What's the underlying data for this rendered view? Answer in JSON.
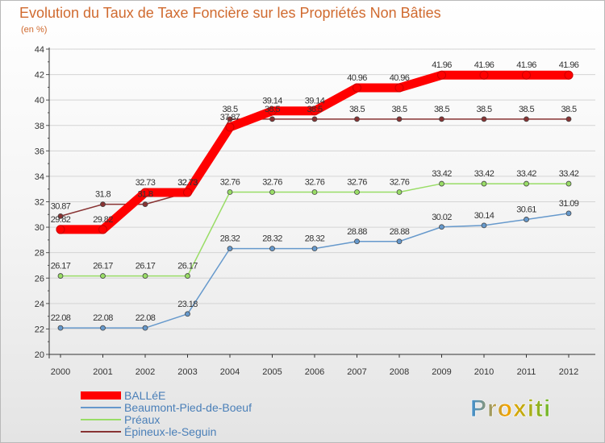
{
  "chart_data": {
    "type": "line",
    "title": "Evolution du Taux de Taxe Foncière sur les Propriétés Non Bâties",
    "subtitle": "(en %)",
    "categories": [
      "2000",
      "2001",
      "2002",
      "2003",
      "2004",
      "2005",
      "2006",
      "2007",
      "2008",
      "2009",
      "2010",
      "2011",
      "2012"
    ],
    "ylim": [
      20,
      44
    ],
    "yticks": [
      20,
      22,
      24,
      26,
      28,
      30,
      32,
      34,
      36,
      38,
      40,
      42,
      44
    ],
    "series": [
      {
        "name": "BALLéE",
        "color": "#ff0000",
        "labels": [
          "29.82",
          "29.82",
          "32.73",
          "32.73",
          "37.87",
          "39.14",
          "39.14",
          "40.96",
          "40.96",
          "41.96",
          "41.96",
          "41.96",
          "41.96"
        ],
        "values": [
          29.82,
          29.82,
          32.73,
          32.73,
          37.87,
          39.14,
          39.14,
          40.96,
          40.96,
          41.96,
          41.96,
          41.96,
          41.96
        ]
      },
      {
        "name": "Beaumont-Pied-de-Boeuf",
        "color": "#6699cc",
        "labels": [
          "22.08",
          "22.08",
          "22.08",
          "23.18",
          "28.32",
          "28.32",
          "28.32",
          "28.88",
          "28.88",
          "30.02",
          "30.14",
          "30.61",
          "31.09"
        ],
        "values": [
          22.08,
          22.08,
          22.08,
          23.18,
          28.32,
          28.32,
          28.32,
          28.88,
          28.88,
          30.02,
          30.14,
          30.61,
          31.09
        ]
      },
      {
        "name": "Préaux",
        "color": "#99dd66",
        "labels": [
          "26.17",
          "26.17",
          "26.17",
          "26.17",
          "32.76",
          "32.76",
          "32.76",
          "32.76",
          "32.76",
          "33.42",
          "33.42",
          "33.42",
          "33.42"
        ],
        "values": [
          26.17,
          26.17,
          26.17,
          26.17,
          32.76,
          32.76,
          32.76,
          32.76,
          32.76,
          33.42,
          33.42,
          33.42,
          33.42
        ]
      },
      {
        "name": "Épineux-le-Seguin",
        "color": "#883333",
        "labels": [
          "30.87",
          "31.8",
          "31.8",
          "32.73",
          "38.5",
          "38.5",
          "38.5",
          "38.5",
          "38.5",
          "38.5",
          "38.5",
          "38.5",
          "38.5"
        ],
        "values": [
          30.87,
          31.8,
          31.8,
          32.73,
          38.5,
          38.5,
          38.5,
          38.5,
          38.5,
          38.5,
          38.5,
          38.5,
          38.5
        ]
      }
    ]
  },
  "logo": {
    "text": "Proxiti"
  }
}
